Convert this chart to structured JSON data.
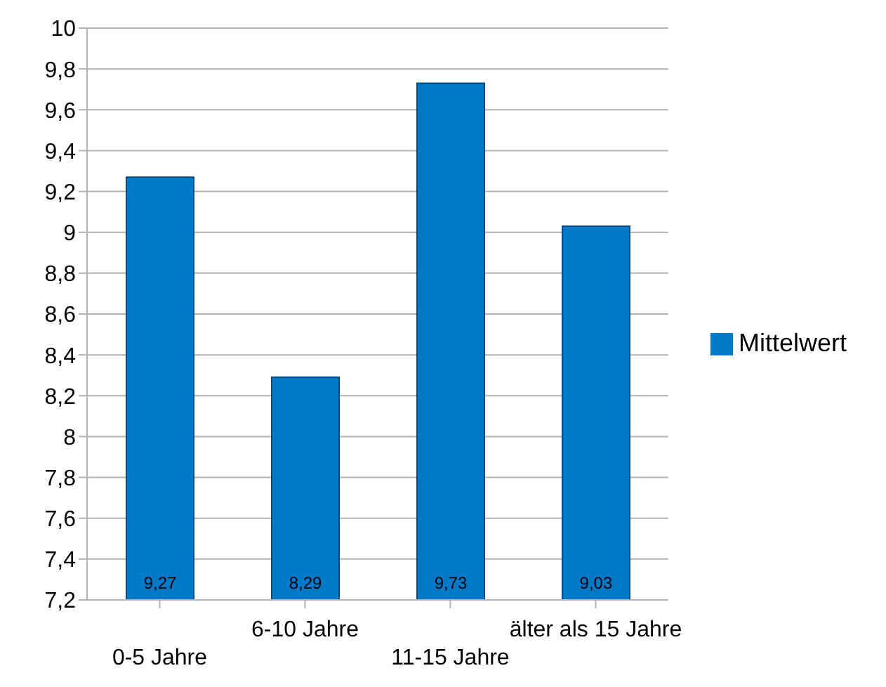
{
  "chart_data": {
    "type": "bar",
    "categories": [
      "0-5 Jahre",
      "6-10 Jahre",
      "11-15 Jahre",
      "älter als 15 Jahre"
    ],
    "series": [
      {
        "name": "Mittelwert",
        "color": "#0079c9",
        "values": [
          9.27,
          8.29,
          9.73,
          9.03
        ],
        "value_labels": [
          "9,27",
          "8,29",
          "9,73",
          "9,03"
        ]
      }
    ],
    "ylim": [
      7.2,
      10
    ],
    "yticks": [
      {
        "value": 7.2,
        "label": "7,2"
      },
      {
        "value": 7.4,
        "label": "7,4"
      },
      {
        "value": 7.6,
        "label": "7,6"
      },
      {
        "value": 7.8,
        "label": "7,8"
      },
      {
        "value": 8,
        "label": "8"
      },
      {
        "value": 8.2,
        "label": "8,2"
      },
      {
        "value": 8.4,
        "label": "8,4"
      },
      {
        "value": 8.6,
        "label": "8,6"
      },
      {
        "value": 8.8,
        "label": "8,8"
      },
      {
        "value": 9,
        "label": "9"
      },
      {
        "value": 9.2,
        "label": "9,2"
      },
      {
        "value": 9.4,
        "label": "9,4"
      },
      {
        "value": 9.6,
        "label": "9,6"
      },
      {
        "value": 9.8,
        "label": "9,8"
      },
      {
        "value": 10,
        "label": "10"
      }
    ],
    "grid": "y",
    "legend": "right"
  }
}
